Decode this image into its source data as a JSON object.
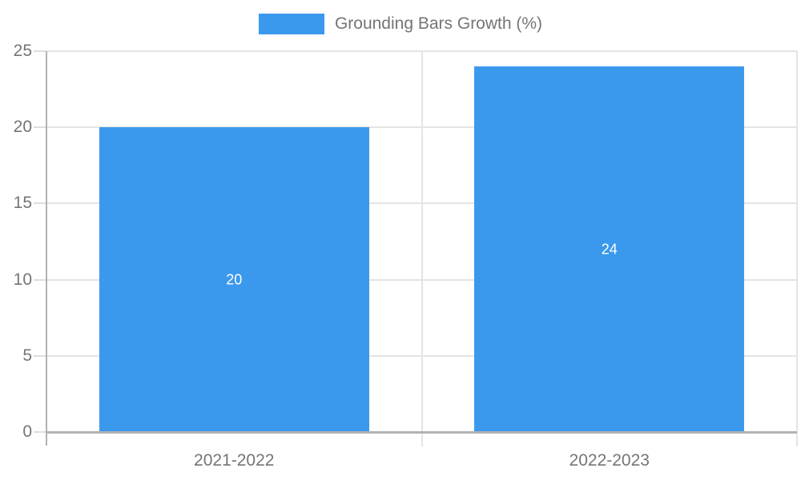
{
  "legend": {
    "label": "Grounding Bars Growth (%)"
  },
  "chart_data": {
    "type": "bar",
    "title": "Grounding Bars Growth (%)",
    "categories": [
      "2021-2022",
      "2022-2023"
    ],
    "values": [
      20,
      24
    ],
    "bar_value_labels": [
      "20",
      "24"
    ],
    "xlabel": "",
    "ylabel": "",
    "ylim": [
      0,
      25
    ],
    "yticks": [
      0,
      5,
      10,
      15,
      20,
      25
    ],
    "grid": true,
    "legend_position": "top-center",
    "colors": {
      "bar": "#3b99ed",
      "bar_label_text": "#ffffff",
      "grid_line": "#e4e4e4",
      "axis_line": "#b2b2b2",
      "tick_text": "#757575",
      "background": "#ffffff"
    }
  }
}
